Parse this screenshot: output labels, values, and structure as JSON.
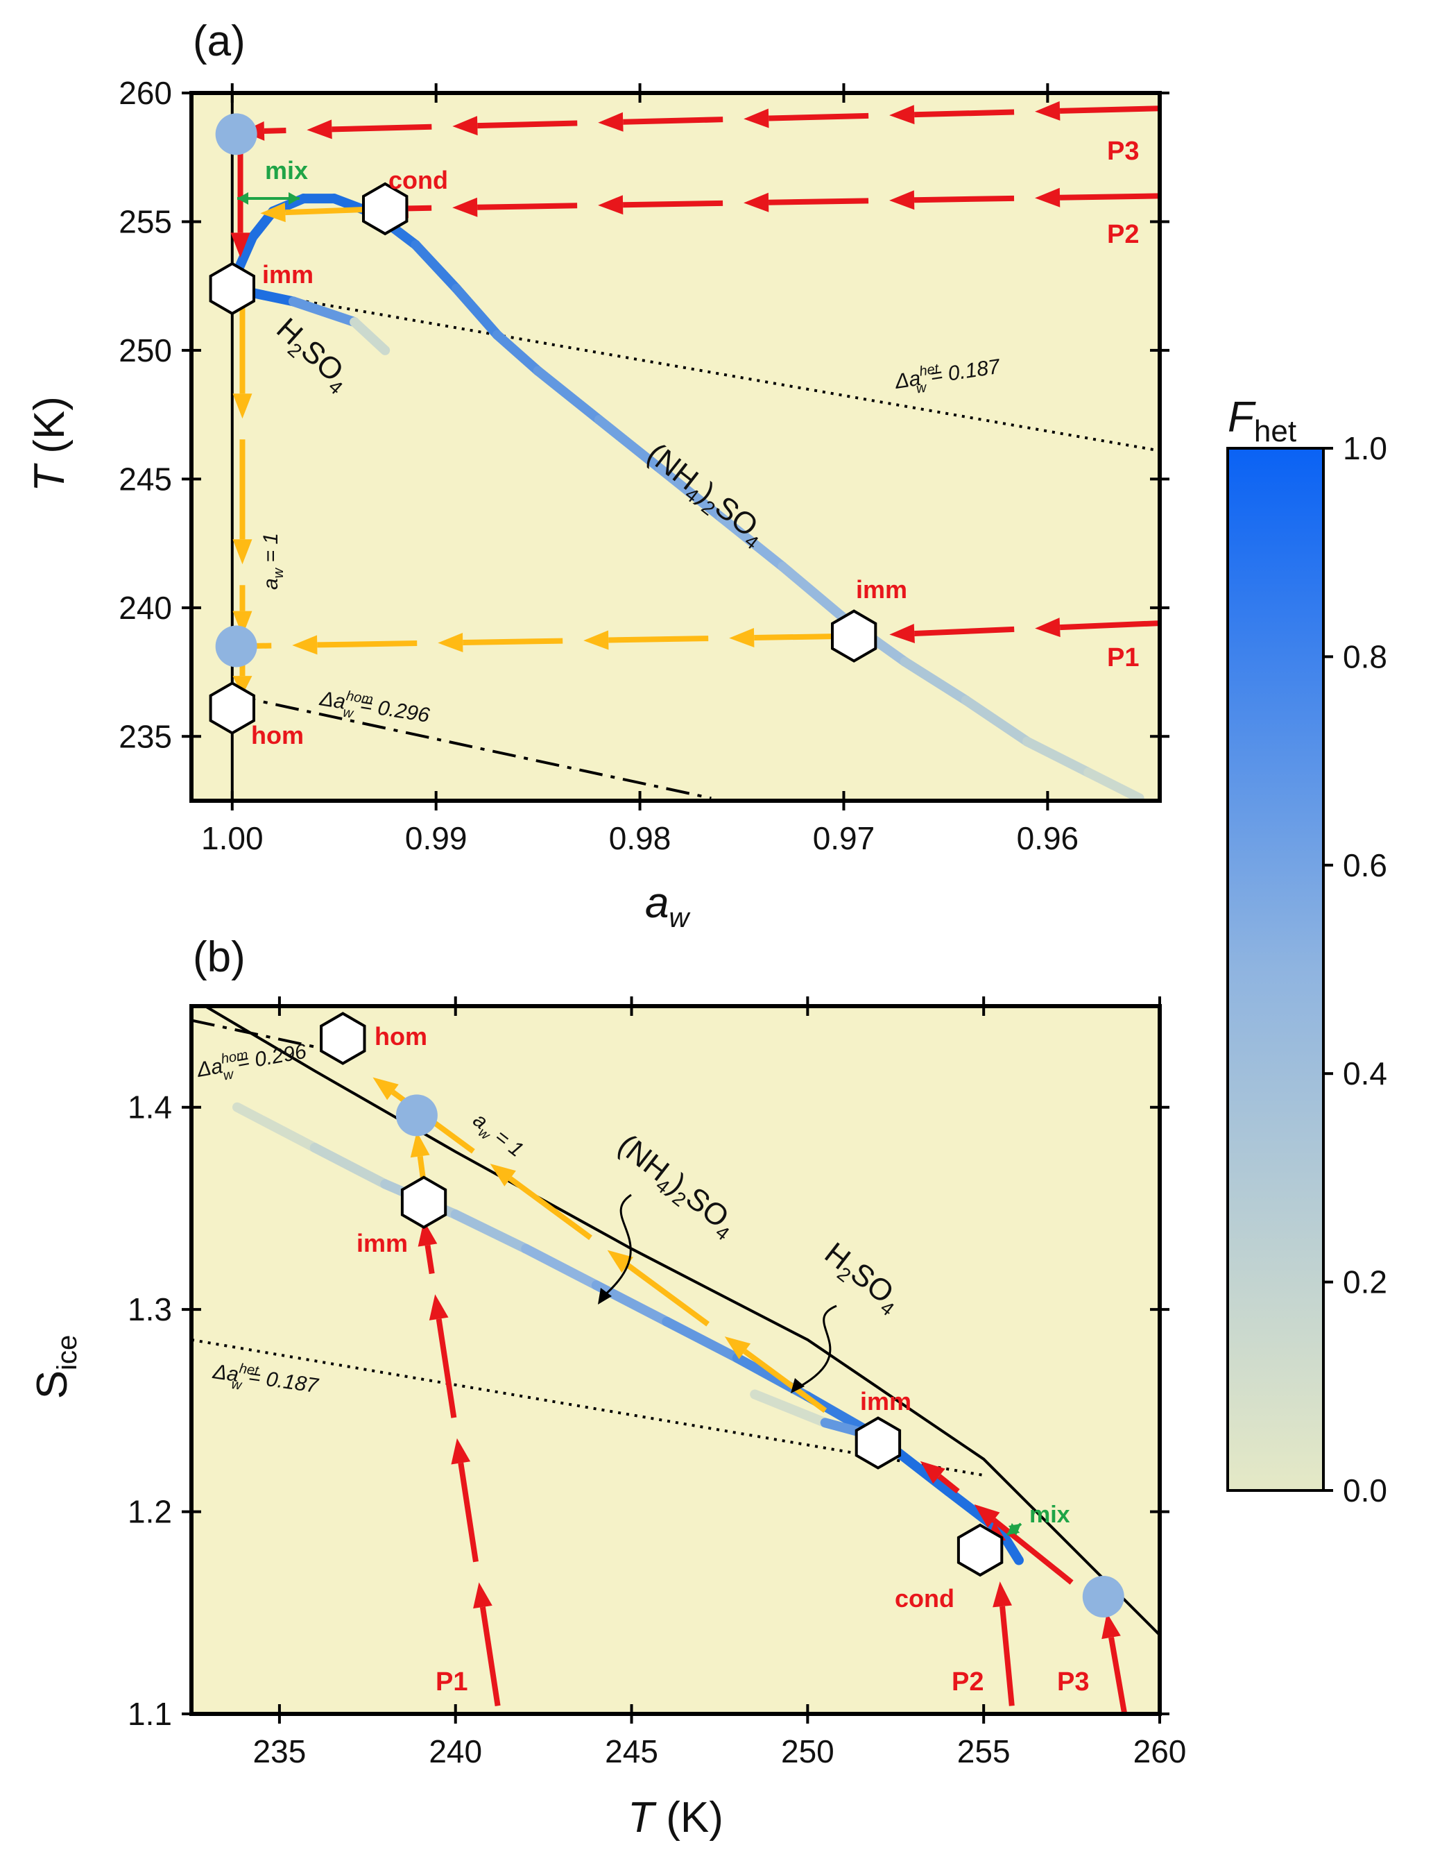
{
  "chart_data": [
    {
      "panel": "(a)",
      "type": "line",
      "xlabel": "a_w",
      "ylabel": "T (K)",
      "xlim": [
        1.002,
        0.9545
      ],
      "ylim": [
        232.5,
        260
      ],
      "xticks": [
        "1.00",
        "0.99",
        "0.98",
        "0.97",
        "0.96"
      ],
      "yticks": [
        "260",
        "255",
        "250",
        "245",
        "240",
        "235"
      ],
      "background": "#f5f2c8",
      "curves": [
        {
          "label": "(NH4)2SO4",
          "color": "#1f6fe0",
          "points": [
            [
              1.0,
              252.6
            ],
            [
              0.999,
              254.4
            ],
            [
              0.998,
              255.4
            ],
            [
              0.9965,
              255.9
            ],
            [
              0.995,
              255.9
            ],
            [
              0.993,
              255.3
            ],
            [
              0.991,
              254.1
            ],
            [
              0.989,
              252.4
            ],
            [
              0.987,
              250.6
            ],
            [
              0.985,
              249.2
            ],
            [
              0.982,
              247.3
            ],
            [
              0.979,
              245.4
            ],
            [
              0.976,
              243.5
            ],
            [
              0.973,
              241.6
            ],
            [
              0.97,
              239.6
            ],
            [
              0.967,
              237.9
            ],
            [
              0.964,
              236.4
            ],
            [
              0.961,
              234.8
            ],
            [
              0.958,
              233.6
            ],
            [
              0.9555,
              232.6
            ]
          ]
        },
        {
          "label": "H2SO4",
          "color": "#1f6fe0",
          "points": [
            [
              1.0,
              252.4
            ],
            [
              0.997,
              251.9
            ],
            [
              0.994,
              251.1
            ],
            [
              0.9925,
              250.0
            ]
          ]
        }
      ],
      "reference_lines": [
        {
          "label": "Δa_w^het = 0.187",
          "style": "dotted",
          "points": [
            [
              1.0,
              252.4
            ],
            [
              0.9545,
              246.1
            ]
          ]
        },
        {
          "label": "Δa_w^hom = 0.296",
          "style": "dashdot",
          "points": [
            [
              1.0,
              236.6
            ],
            [
              0.9765,
              232.6
            ]
          ]
        },
        {
          "label": "a_w = 1",
          "style": "solid",
          "points": [
            [
              1.0,
              260
            ],
            [
              1.0,
              232.5
            ]
          ]
        }
      ],
      "paths": [
        {
          "name": "P1",
          "color": "#e8161b",
          "from": [
            0.9545,
            239.4
          ],
          "to": [
            0.9695,
            238.9
          ]
        },
        {
          "name": "P1",
          "color": "#ffba14",
          "from": [
            0.9695,
            238.9
          ],
          "to": [
            1.0,
            238.5
          ]
        },
        {
          "name": "P2",
          "color": "#e8161b",
          "from": [
            0.9545,
            256.0
          ],
          "to": [
            0.9925,
            255.5
          ]
        },
        {
          "name": "P2",
          "color": "#ffba14",
          "from": [
            0.9925,
            255.5
          ],
          "to": [
            0.9995,
            255.3
          ]
        },
        {
          "name": "P3",
          "color": "#e8161b",
          "from": [
            0.9545,
            259.4
          ],
          "to": [
            0.9995,
            258.5
          ]
        },
        {
          "name": "P3",
          "color": "#e8161b",
          "from": [
            0.9996,
            258.0
          ],
          "to": [
            0.9996,
            253.6
          ]
        },
        {
          "name": "a_w = 1",
          "color": "#ffba14",
          "from": [
            0.9995,
            252.2
          ],
          "to": [
            0.9995,
            238.9
          ]
        },
        {
          "name": "a_w = 1",
          "color": "#ffba14",
          "from": [
            0.9995,
            238.1
          ],
          "to": [
            0.9995,
            236.6
          ]
        }
      ],
      "markers": [
        {
          "kind": "hexagon",
          "label": "cond",
          "point": [
            0.9925,
            255.5
          ]
        },
        {
          "kind": "hexagon",
          "label": "imm",
          "point": [
            1.0,
            252.4
          ]
        },
        {
          "kind": "hexagon",
          "label": "imm",
          "point": [
            0.9695,
            238.9
          ]
        },
        {
          "kind": "hexagon",
          "label": "hom",
          "point": [
            1.0,
            236.1
          ]
        },
        {
          "kind": "circle",
          "point": [
            0.9998,
            258.4
          ]
        },
        {
          "kind": "circle",
          "point": [
            0.9998,
            238.5
          ]
        }
      ],
      "annotations": [
        "mix",
        "P1",
        "P2",
        "P3",
        "Δa_w^het = 0.187",
        "Δa_w^hom = 0.296",
        "a_w = 1",
        "(NH4)2SO4",
        "H2SO4"
      ]
    },
    {
      "panel": "(b)",
      "type": "line",
      "xlabel": "T (K)",
      "ylabel": "S_ice",
      "xlim": [
        232.5,
        260
      ],
      "ylim": [
        1.1,
        1.45
      ],
      "xticks": [
        "235",
        "240",
        "245",
        "250",
        "255",
        "260"
      ],
      "yticks": [
        "1.4",
        "1.3",
        "1.2",
        "1.1"
      ],
      "background": "#f5f2c8",
      "curves": [
        {
          "label": "(NH4)2SO4",
          "color": "#1f6fe0",
          "points": [
            [
              233.8,
              1.4
            ],
            [
              236.0,
              1.38
            ],
            [
              238.0,
              1.362
            ],
            [
              240.0,
              1.347
            ],
            [
              242.0,
              1.33
            ],
            [
              244.0,
              1.312
            ],
            [
              246.0,
              1.294
            ],
            [
              248.0,
              1.276
            ],
            [
              250.0,
              1.257
            ],
            [
              252.0,
              1.237
            ],
            [
              254.0,
              1.21
            ],
            [
              255.5,
              1.19
            ],
            [
              256.0,
              1.176
            ]
          ]
        },
        {
          "label": "H2SO4",
          "color": "#1f6fe0",
          "points": [
            [
              248.5,
              1.258
            ],
            [
              250.5,
              1.244
            ],
            [
              252.2,
              1.236
            ]
          ]
        }
      ],
      "reference_lines": [
        {
          "label": "a_w = 1",
          "style": "solid",
          "points": [
            [
              232.5,
              1.454
            ],
            [
              236.0,
              1.418
            ],
            [
              240.0,
              1.378
            ],
            [
              245.0,
              1.33
            ],
            [
              250.0,
              1.285
            ],
            [
              255.0,
              1.226
            ],
            [
              260.0,
              1.139
            ]
          ]
        },
        {
          "label": "Δa_w^hom = 0.296",
          "style": "dashdot",
          "points": [
            [
              232.5,
              1.443
            ],
            [
              236.5,
              1.428
            ]
          ]
        },
        {
          "label": "Δa_w^het = 0.187",
          "style": "dotted",
          "points": [
            [
              232.5,
              1.285
            ],
            [
              250.0,
              1.233
            ],
            [
              255.0,
              1.218
            ]
          ]
        }
      ],
      "paths": [
        {
          "name": "P1",
          "color": "#e8161b",
          "from": [
            241.2,
            1.104
          ],
          "to": [
            239.1,
            1.344
          ]
        },
        {
          "name": "P1",
          "color": "#ffba14",
          "from": [
            239.1,
            1.362
          ],
          "to": [
            238.9,
            1.388
          ]
        },
        {
          "name": "P2",
          "color": "#e8161b",
          "from": [
            255.8,
            1.104
          ],
          "to": [
            255.3,
            1.195
          ]
        },
        {
          "name": "P3",
          "color": "#e8161b",
          "from": [
            259.0,
            1.1
          ],
          "to": [
            258.5,
            1.15
          ]
        },
        {
          "name": "P3",
          "color": "#e8161b",
          "from": [
            257.5,
            1.165
          ],
          "to": [
            253.2,
            1.225
          ]
        },
        {
          "name": "a_w = 1",
          "color": "#ffba14",
          "from": [
            250.5,
            1.25
          ],
          "to": [
            237.4,
            1.418
          ]
        }
      ],
      "markers": [
        {
          "kind": "hexagon",
          "label": "hom",
          "point": [
            236.8,
            1.434
          ]
        },
        {
          "kind": "hexagon",
          "label": "imm",
          "point": [
            239.1,
            1.353
          ]
        },
        {
          "kind": "hexagon",
          "label": "imm",
          "point": [
            252.0,
            1.234
          ]
        },
        {
          "kind": "hexagon",
          "label": "cond",
          "point": [
            254.9,
            1.181
          ]
        },
        {
          "kind": "circle",
          "point": [
            238.9,
            1.396
          ]
        },
        {
          "kind": "circle",
          "point": [
            258.4,
            1.158
          ]
        }
      ],
      "annotations": [
        "mix",
        "P1",
        "P2",
        "P3",
        "Δa_w^het = 0.187",
        "Δa_w^hom = 0.296",
        "a_w = 1",
        "(NH4)2SO4",
        "H2SO4"
      ]
    },
    {
      "type": "colorbar",
      "label": "F_het",
      "range": [
        0.0,
        1.0
      ],
      "ticks": [
        "1.0",
        "0.8",
        "0.6",
        "0.4",
        "0.2",
        "0.0"
      ],
      "colors": [
        "#e5e9c6",
        "#8fb4e0",
        "#0a62f4"
      ]
    }
  ],
  "labels": {
    "panel_a": "(a)",
    "panel_b": "(b)",
    "a_xlabel_main": "a",
    "a_xlabel_sub": "w",
    "a_ylabel_italic": "T",
    "a_ylabel_unit": " (K)",
    "b_xlabel_italic": "T",
    "b_xlabel_unit": " (K)",
    "b_ylabel_main": "S",
    "b_ylabel_sub": "ice",
    "cbar_main": "F",
    "cbar_sub": "het",
    "mix": "mix",
    "cond": "cond",
    "imm": "imm",
    "hom": "hom",
    "p1": "P1",
    "p2": "P2",
    "p3": "P3",
    "delta": "Δ",
    "a": "a",
    "w": "w",
    "het": "het",
    "hom_sup": "hom",
    "het_val": " = 0.187",
    "hom_val": " = 0.296",
    "aw1_val": " = 1",
    "nh4_open": "(NH",
    "nh4_4": "4",
    "nh4_close": ")",
    "nh4_2": "2",
    "so": "SO",
    "so_4": "4",
    "h": "H",
    "h2": "2"
  }
}
